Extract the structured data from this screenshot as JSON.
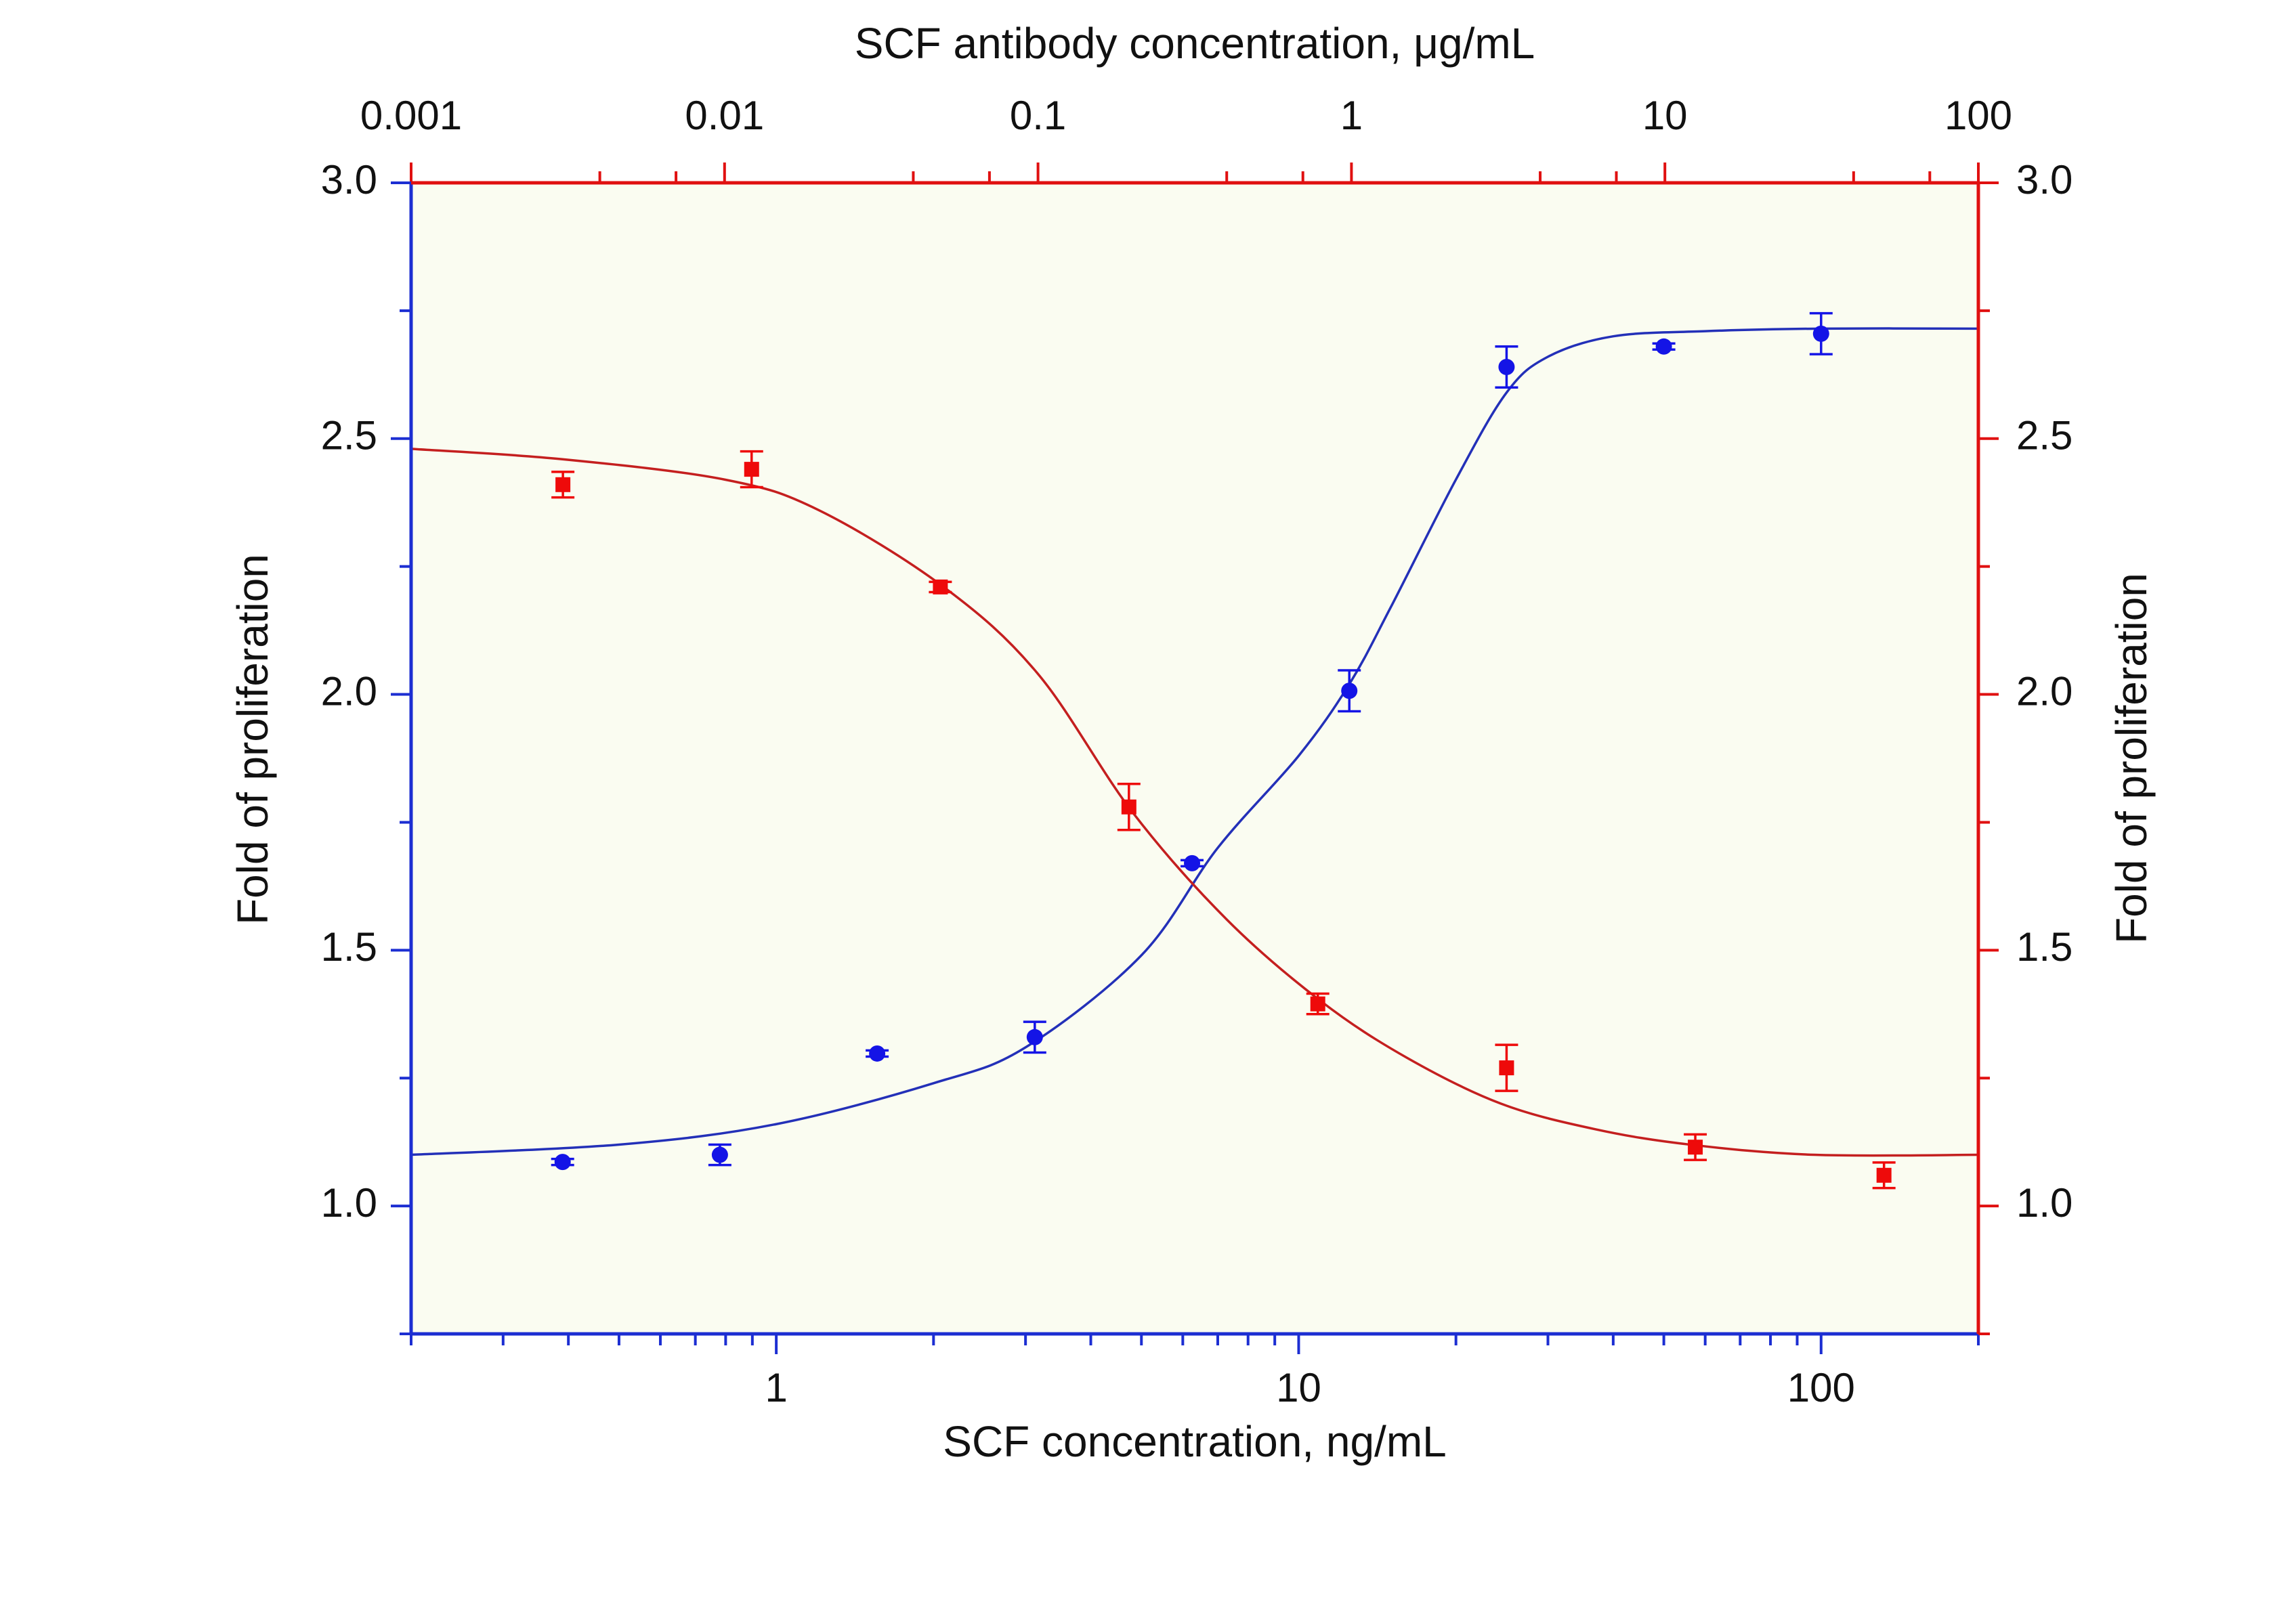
{
  "chart_data": {
    "type": "scatter",
    "x_label": "SCF concentration, ng/mL",
    "x2_label": "SCF antibody concentration, μg/mL",
    "y_label": "Fold of proliferation",
    "y2_label": "Fold of proliferation",
    "xscale": "log",
    "xlim": [
      0.2,
      200
    ],
    "xticks": [
      1,
      10,
      100
    ],
    "xminorticks": [
      0.2,
      0.3,
      0.4,
      0.5,
      0.6,
      0.7,
      0.8,
      0.9,
      2,
      3,
      4,
      5,
      6,
      7,
      8,
      9,
      20,
      30,
      40,
      50,
      60,
      70,
      80,
      90,
      200
    ],
    "x2scale": "log",
    "x2lim": [
      0.001,
      100
    ],
    "x2ticks": [
      0.001,
      0.01,
      0.1,
      1,
      10,
      100
    ],
    "x2minorticks": [
      0.004,
      0.007,
      0.04,
      0.07,
      0.4,
      0.7,
      4,
      7,
      40,
      70
    ],
    "ylim": [
      0.75,
      3.0
    ],
    "yticks": [
      {
        "value": 1.0,
        "label": "1.0"
      },
      {
        "value": 1.5,
        "label": "1.5"
      },
      {
        "value": 2.0,
        "label": "2.0"
      },
      {
        "value": 2.5,
        "label": "2.5"
      },
      {
        "value": 3.0,
        "label": "3.0"
      }
    ],
    "yminorticks": [
      0.75,
      1.25,
      1.75,
      2.25,
      2.75
    ],
    "y2lim": [
      0.75,
      3.0
    ],
    "y2ticks": [
      {
        "value": 1.0,
        "label": "1.0"
      },
      {
        "value": 1.5,
        "label": "1.5"
      },
      {
        "value": 2.0,
        "label": "2.0"
      },
      {
        "value": 2.5,
        "label": "2.5"
      },
      {
        "value": 3.0,
        "label": "3.0"
      }
    ],
    "y2minorticks": [
      0.75,
      1.25,
      1.75,
      2.25,
      2.75
    ],
    "axis_color": "#1c2ed2",
    "axis2_color": "#e01010",
    "plot_background": "#fafcf1",
    "series": [
      {
        "marker": "circle",
        "color": "#1414e6",
        "xaxis": "x",
        "axis": "y",
        "x": [
          0.39,
          0.78,
          1.56,
          3.125,
          6.25,
          12.5,
          25,
          50,
          100
        ],
        "values": [
          1.086,
          1.1,
          1.298,
          1.33,
          1.67,
          2.007,
          2.64,
          2.68,
          2.705
        ],
        "errors": [
          0.006,
          0.02,
          0.006,
          0.03,
          0.006,
          0.04,
          0.04,
          0.006,
          0.04
        ]
      },
      {
        "marker": "square",
        "color": "#ee0a0a",
        "xaxis": "x2",
        "axis": "y2",
        "x": [
          0.00305,
          0.0122,
          0.0488,
          0.195,
          0.781,
          3.125,
          12.5,
          50
        ],
        "values": [
          2.41,
          2.44,
          2.21,
          1.78,
          1.395,
          1.27,
          1.115,
          1.06
        ],
        "errors": [
          0.025,
          0.035,
          0.01,
          0.045,
          0.02,
          0.045,
          0.025,
          0.025
        ]
      }
    ],
    "fits": [
      {
        "color": "#2330b8",
        "xaxis": "x",
        "axis": "y",
        "x": [
          0.2,
          0.5,
          1,
          2,
          3,
          5,
          7,
          10,
          12.5,
          15,
          20,
          25,
          30,
          40,
          60,
          100,
          200
        ],
        "values": [
          1.1,
          1.12,
          1.16,
          1.24,
          1.31,
          1.49,
          1.7,
          1.88,
          2.02,
          2.17,
          2.42,
          2.59,
          2.66,
          2.7,
          2.71,
          2.715,
          2.715
        ]
      },
      {
        "color": "#c41f1f",
        "xaxis": "x2",
        "axis": "y2",
        "x": [
          0.001,
          0.003,
          0.01,
          0.02,
          0.05,
          0.1,
          0.2,
          0.4,
          0.8,
          1.5,
          3,
          6,
          12,
          30,
          100
        ],
        "values": [
          2.48,
          2.46,
          2.42,
          2.36,
          2.21,
          2.04,
          1.77,
          1.56,
          1.4,
          1.29,
          1.2,
          1.15,
          1.12,
          1.1,
          1.1
        ]
      }
    ]
  }
}
